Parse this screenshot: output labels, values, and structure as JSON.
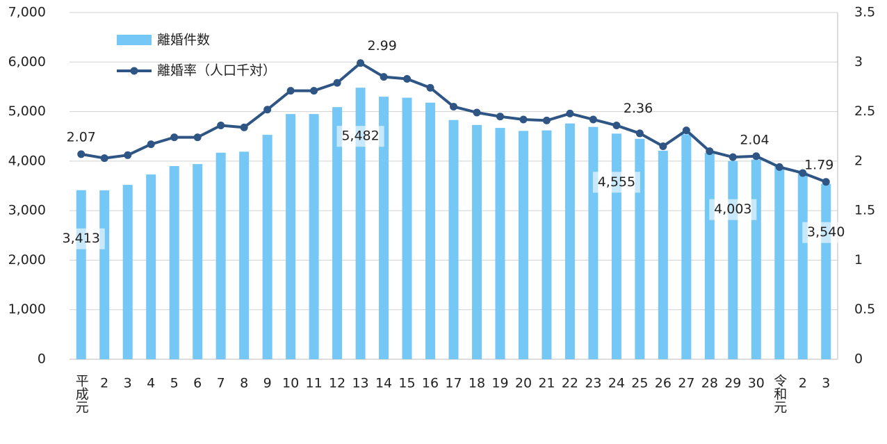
{
  "chart_data": {
    "type": "bar_line",
    "categories": [
      "平成元",
      "2",
      "3",
      "4",
      "5",
      "6",
      "7",
      "8",
      "9",
      "10",
      "11",
      "12",
      "13",
      "14",
      "15",
      "16",
      "17",
      "18",
      "19",
      "20",
      "21",
      "22",
      "23",
      "24",
      "25",
      "26",
      "27",
      "28",
      "29",
      "30",
      "令和元",
      "2",
      "3"
    ],
    "series": [
      {
        "name": "離婚件数",
        "type": "bar",
        "color": "#75c7f5",
        "values": [
          3413,
          3410,
          3520,
          3730,
          3900,
          3940,
          4170,
          4190,
          4530,
          4950,
          4950,
          5090,
          5482,
          5300,
          5280,
          5180,
          4830,
          4730,
          4670,
          4610,
          4620,
          4760,
          4690,
          4555,
          4450,
          4210,
          4540,
          4170,
          4003,
          4030,
          3890,
          3770,
          3540
        ],
        "value_labels": [
          "3,413",
          null,
          null,
          null,
          null,
          null,
          null,
          null,
          null,
          null,
          null,
          null,
          "5,482",
          null,
          null,
          null,
          null,
          null,
          null,
          null,
          null,
          null,
          null,
          "4,555",
          null,
          null,
          null,
          null,
          "4,003",
          null,
          null,
          null,
          "3,540"
        ]
      },
      {
        "name": "離婚率（人口千対）",
        "type": "line",
        "axis": "y2",
        "color": "#2e5584",
        "values": [
          2.07,
          2.03,
          2.06,
          2.17,
          2.24,
          2.24,
          2.36,
          2.34,
          2.52,
          2.71,
          2.71,
          2.79,
          2.99,
          2.85,
          2.83,
          2.74,
          2.55,
          2.49,
          2.45,
          2.42,
          2.41,
          2.48,
          2.42,
          2.36,
          2.28,
          2.15,
          2.31,
          2.1,
          2.04,
          2.05,
          1.94,
          1.88,
          1.79
        ],
        "value_labels": [
          "2.07",
          null,
          null,
          null,
          null,
          null,
          null,
          null,
          null,
          null,
          null,
          null,
          "2.99",
          null,
          null,
          null,
          null,
          null,
          null,
          null,
          null,
          null,
          null,
          "2.36",
          null,
          null,
          null,
          null,
          "2.04",
          null,
          null,
          null,
          "1.79"
        ]
      }
    ],
    "ylim": [
      0,
      7000
    ],
    "yticks": [
      0,
      {
        "value": 1000,
        "label": "1,000"
      },
      {
        "value": 2000,
        "label": "2,000"
      },
      {
        "value": 3000,
        "label": "3,000"
      },
      {
        "value": 4000,
        "label": "4,000"
      },
      {
        "value": 5000,
        "label": "5,000"
      },
      {
        "value": 6000,
        "label": "6,000"
      },
      {
        "value": 7000,
        "label": "7,000"
      }
    ],
    "y2lim": [
      0,
      3.5
    ],
    "y2ticks": [
      0,
      0.5,
      1,
      1.5,
      2,
      2.5,
      3,
      3.5
    ],
    "grid": true,
    "legend": "upper left"
  }
}
